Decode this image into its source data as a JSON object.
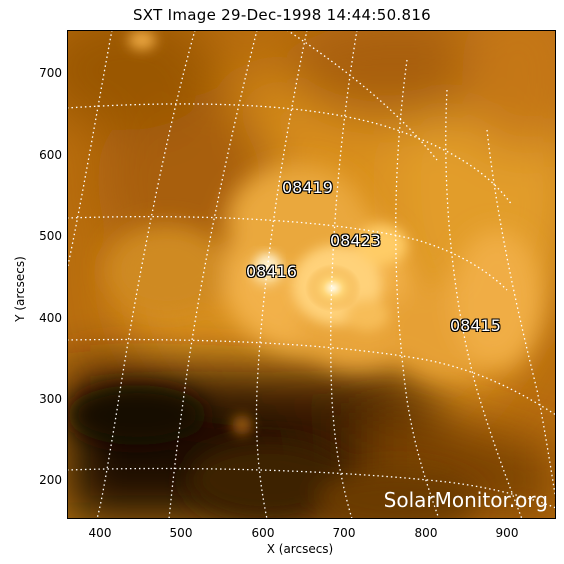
{
  "title": "SXT Image 29-Dec-1998 14:44:50.816",
  "xlabel": "X (arcsecs)",
  "ylabel": "Y (arcsecs)",
  "x_ticks": [
    "400",
    "500",
    "600",
    "700",
    "800",
    "900"
  ],
  "y_ticks": [
    "700",
    "600",
    "500",
    "400",
    "300",
    "200"
  ],
  "regions": [
    "08419",
    "08423",
    "08416",
    "08415"
  ],
  "watermark": "SolarMonitor.org",
  "colors": {
    "corona": "#d58a16",
    "dark": "#2a1600",
    "bright": "#fff3cf",
    "grid": "#ffffff"
  }
}
